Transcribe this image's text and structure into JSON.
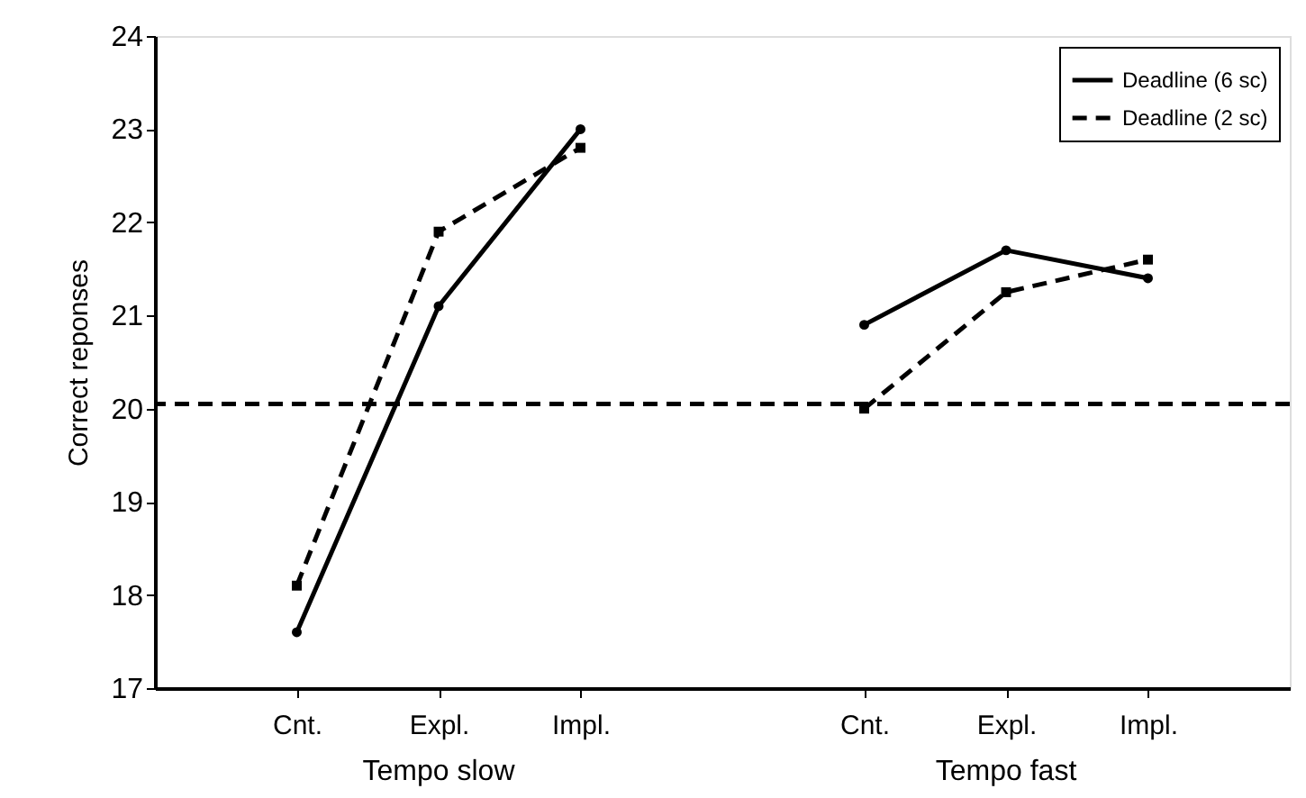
{
  "chart_data": {
    "type": "line",
    "ylabel": "Correct  reponses",
    "categories": [
      "Cnt.",
      "Expl.",
      "Impl.",
      null,
      "Cnt.",
      "Expl.",
      "Impl."
    ],
    "series": [
      {
        "name": "Deadline (6 sc)",
        "color": "#000000",
        "line_style": "solid",
        "marker": "circle",
        "values": [
          17.6,
          21.1,
          23.0,
          null,
          20.9,
          21.7,
          21.4
        ]
      },
      {
        "name": "Deadline (2 sc)",
        "color": "#000000",
        "line_style": "dashed",
        "marker": "square",
        "values": [
          18.1,
          21.9,
          22.8,
          null,
          20.0,
          21.25,
          21.6
        ]
      }
    ],
    "ylim": [
      17,
      24
    ],
    "yticks": [
      17,
      18,
      19,
      20,
      21,
      22,
      23,
      24
    ],
    "ref_lines": [
      {
        "axis": "y",
        "value": 20.05,
        "line_style": "dashed",
        "color": "#000000"
      }
    ],
    "annotations": [
      "Tempo slow",
      "Tempo fast"
    ],
    "legend": "top right",
    "grid": false
  }
}
